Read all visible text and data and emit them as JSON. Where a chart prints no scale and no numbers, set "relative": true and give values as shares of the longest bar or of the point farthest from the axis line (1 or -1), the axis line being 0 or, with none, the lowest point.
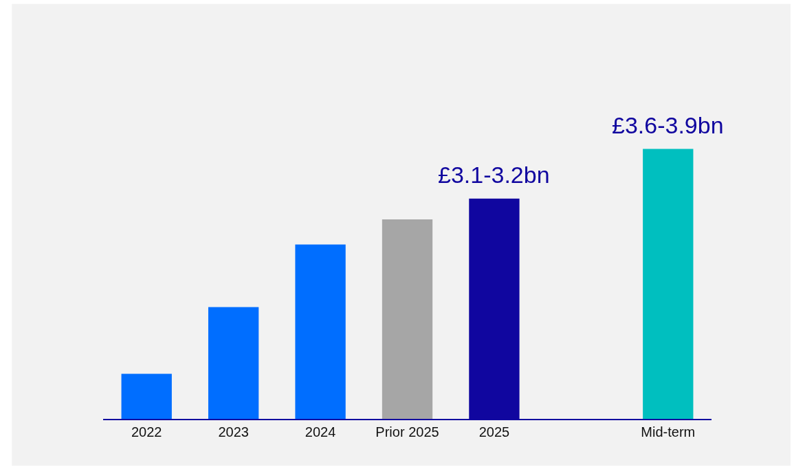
{
  "chart_data": {
    "type": "bar",
    "relative": true,
    "categories": [
      "2022",
      "2023",
      "2024",
      "Prior 2025",
      "2025",
      null,
      "Mid-term"
    ],
    "values": [
      0.167,
      0.414,
      0.646,
      0.739,
      0.816,
      null,
      1
    ],
    "colors": [
      "#006eff",
      "#006eff",
      "#006eff",
      "#a6a6a6",
      "#10069f",
      "#10069f",
      "#00bfbf"
    ],
    "annotations": [
      {
        "text": "£3.1-3.2bn",
        "x": "2025",
        "y": 0.816
      },
      {
        "text": "£3.6-3.9bn",
        "x": "Mid-term",
        "y": 1
      }
    ],
    "grid": false,
    "legend": false,
    "tick_labels": "x"
  }
}
